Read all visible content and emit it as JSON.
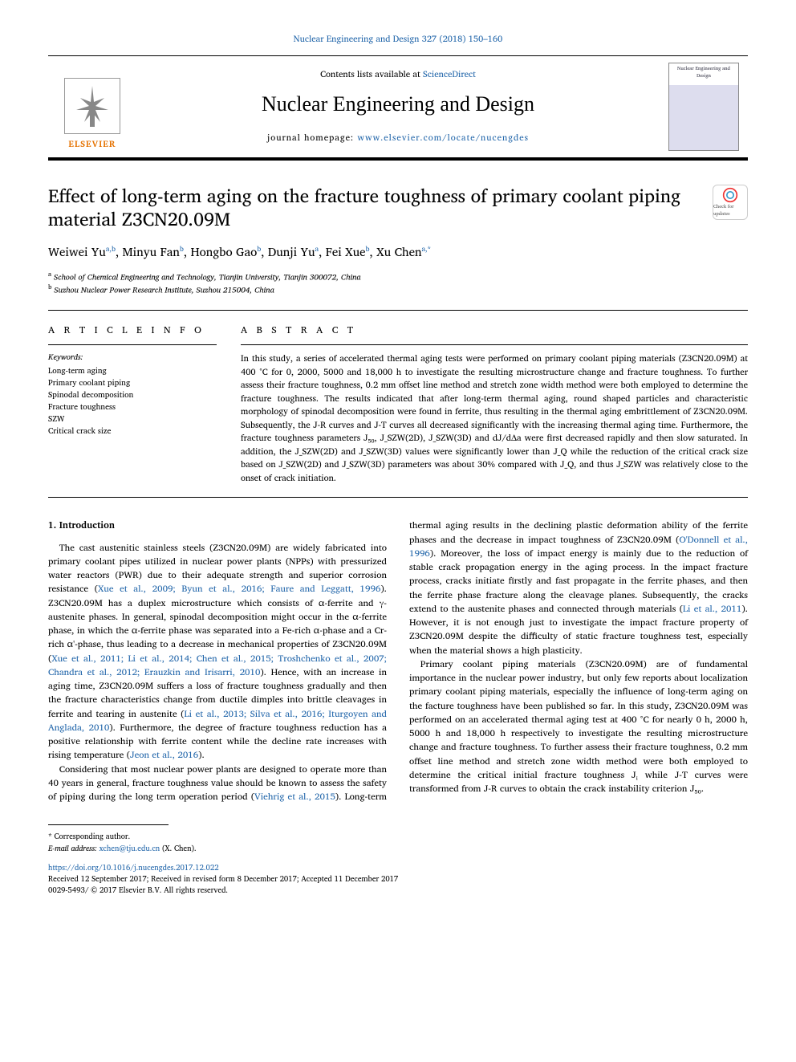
{
  "header": {
    "citation": "Nuclear Engineering and Design 327 (2018) 150–160",
    "contents_prefix": "Contents lists available at ",
    "contents_link": "ScienceDirect",
    "journal_name": "Nuclear Engineering and Design",
    "homepage_prefix": "journal homepage: ",
    "homepage_url": "www.elsevier.com/locate/nucengdes",
    "elsevier_label": "ELSEVIER",
    "cover_text": "Nuclear Engineering and Design",
    "check_updates": "Check for updates"
  },
  "article": {
    "title": "Effect of long-term aging on the fracture toughness of primary coolant piping material Z3CN20.09M",
    "authors_html": "Weiwei Yu<sup class='sup'>a,b</sup>, Minyu Fan<sup class='sup'>b</sup>, Hongbo Gao<sup class='sup'>b</sup>, Dunji Yu<sup class='sup'>a</sup>, Fei Xue<sup class='sup'>b</sup>, Xu Chen<sup class='sup'>a,*</sup>",
    "affiliations": [
      {
        "label": "a",
        "text": "School of Chemical Engineering and Technology, Tianjin University, Tianjin 300072, China"
      },
      {
        "label": "b",
        "text": "Suzhou Nuclear Power Research Institute, Suzhou 215004, China"
      }
    ]
  },
  "info": {
    "heading": "A R T I C L E  I N F O",
    "kw_label": "Keywords:",
    "keywords": [
      "Long-term aging",
      "Primary coolant piping",
      "Spinodal decomposition",
      "Fracture toughness",
      "SZW",
      "Critical crack size"
    ]
  },
  "abstract": {
    "heading": "A B S T R A C T",
    "text": "In this study, a series of accelerated thermal aging tests were performed on primary coolant piping materials (Z3CN20.09M) at 400 °C for 0, 2000, 5000 and 18,000 h to investigate the resulting microstructure change and fracture toughness. To further assess their fracture toughness, 0.2 mm offset line method and stretch zone width method were both employed to determine the fracture toughness. The results indicated that after long-term thermal aging, round shaped particles and characteristic morphology of spinodal decomposition were found in ferrite, thus resulting in the thermal aging embrittlement of Z3CN20.09M. Subsequently, the J-R curves and J-T curves all decreased significantly with the increasing thermal aging time. Furthermore, the fracture toughness parameters J₅₀, J_SZW(2D), J_SZW(3D) and dJ/dΔa were first decreased rapidly and then slow saturated. In addition, the J_SZW(2D) and J_SZW(3D) values were significantly lower than J_Q while the reduction of the critical crack size based on J_SZW(2D) and J_SZW(3D) parameters was about 30% compared with J_Q, and thus J_SZW was relatively close to the onset of crack initiation."
  },
  "body": {
    "intro_heading": "1. Introduction",
    "p1": "The cast austenitic stainless steels (Z3CN20.09M) are widely fabricated into primary coolant pipes utilized in nuclear power plants (NPPs) with pressurized water reactors (PWR) due to their adequate strength and superior corrosion resistance (<span class='ref'>Xue et al., 2009; Byun et al., 2016; Faure and Leggatt, 1996</span>). Z3CN20.09M has a duplex microstructure which consists of α-ferrite and γ-austenite phases. In general, spinodal decomposition might occur in the α-ferrite phase, in which the α-ferrite phase was separated into a Fe-rich α-phase and a Cr-rich α'-phase, thus leading to a decrease in mechanical properties of Z3CN20.09M (<span class='ref'>Xue et al., 2011; Li et al., 2014; Chen et al., 2015; Troshchenko et al., 2007; Chandra et al., 2012; Erauzkin and Irisarri, 2010</span>). Hence, with an increase in aging time, Z3CN20.09M suffers a loss of fracture toughness gradually and then the fracture characteristics change from ductile dimples into brittle cleavages in ferrite and tearing in austenite (<span class='ref'>Li et al., 2013; Silva et al., 2016; Iturgoyen and Anglada, 2010</span>). Furthermore, the degree of fracture toughness reduction has a positive relationship with ferrite content while the decline rate increases with rising temperature (<span class='ref'>Jeon et al., 2016</span>).",
    "p2": "Considering that most nuclear power plants are designed to operate more than 40 years in general, fracture toughness value should be known to assess the safety of piping during the long term operation period (<span class='ref'>Viehrig et al., 2015</span>). Long-term thermal aging results in the declining plastic deformation ability of the ferrite phases and the decrease in impact toughness of Z3CN20.09M (<span class='ref'>O'Donnell et al., 1996</span>). Moreover, the loss of impact energy is mainly due to the reduction of stable crack propagation energy in the aging process. In the impact fracture process, cracks initiate firstly and fast propagate in the ferrite phases, and then the ferrite phase fracture along the cleavage planes. Subsequently, the cracks extend to the austenite phases and connected through materials (<span class='ref'>Li et al., 2011</span>). However, it is not enough just to investigate the impact fracture property of Z3CN20.09M despite the difficulty of static fracture toughness test, especially when the material shows a high plasticity.",
    "p3": "Primary coolant piping materials (Z3CN20.09M) are of fundamental importance in the nuclear power industry, but only few reports about localization primary coolant piping materials, especially the influence of long-term aging on the facture toughness have been published so far. In this study, Z3CN20.09M was performed on an accelerated thermal aging test at 400 °C for nearly 0 h, 2000 h, 5000 h and 18,000 h respectively to investigate the resulting microstructure change and fracture toughness. To further assess their fracture toughness, 0.2 mm offset line method and stretch zone width method were both employed to determine the critical initial fracture toughness Jᵢ while J-T curves were transformed from J-R curves to obtain the crack instability criterion J₅₀."
  },
  "footer": {
    "corr_label": "* Corresponding author.",
    "email_label": "E-mail address: ",
    "email": "xchen@tju.edu.cn",
    "email_name": " (X. Chen).",
    "doi": "https://doi.org/10.1016/j.nucengdes.2017.12.022",
    "received": "Received 12 September 2017; Received in revised form 8 December 2017; Accepted 11 December 2017",
    "copyright": "0029-5493/ © 2017 Elsevier B.V. All rights reserved."
  },
  "colors": {
    "link": "#2266aa",
    "elsevier_orange": "#e57200"
  }
}
